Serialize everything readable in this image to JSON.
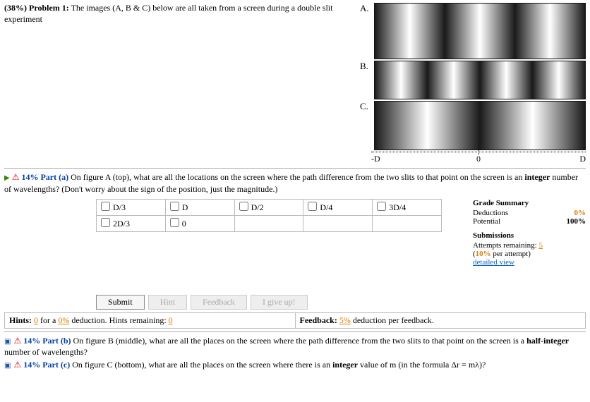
{
  "problem": {
    "weight": "(38%)",
    "title": "Problem 1:",
    "text": "The images (A, B & C) below are all taken from a screen during a double slit experiment"
  },
  "figure": {
    "labels": {
      "a": "A.",
      "b": "B.",
      "c": "C."
    },
    "axis": {
      "left": "-D",
      "center": "0",
      "right": "D"
    },
    "fringe_colors": {
      "light": "#ffffff",
      "dark": "#1a1a1a"
    },
    "patterns": {
      "a": {
        "count": 3
      },
      "b": {
        "count": 4
      },
      "c": {
        "count": 2
      }
    }
  },
  "part_a": {
    "icon1": "▶",
    "icon2": "⚠",
    "pct": "14%",
    "label": "Part (a)",
    "text1": "On figure A (top), what are all the locations on the screen where the path difference from the two slits to that point on the screen is an ",
    "bold": "integer",
    "text2": " number of wavelengths? (Don't worry about the sign of the position, just the magnitude.)",
    "options": [
      [
        "D/3",
        "D",
        "D/2",
        "D/4",
        "3D/4"
      ],
      [
        "2D/3",
        "0",
        "",
        "",
        ""
      ]
    ]
  },
  "grade": {
    "title": "Grade Summary",
    "ded_lbl": "Deductions",
    "ded_val": "0%",
    "pot_lbl": "Potential",
    "pot_val": "100%",
    "sub_title": "Submissions",
    "att_lbl": "Attempts remaining: ",
    "att_val": "5",
    "per_lbl": "(",
    "per_val": "10%",
    "per_lbl2": " per attempt)",
    "dv": "detailed view"
  },
  "buttons": {
    "submit": "Submit",
    "hint": "Hint",
    "feedback": "Feedback",
    "giveup": "I give up!"
  },
  "hints": {
    "prefix": "Hints: ",
    "val": "0",
    "mid": " for a ",
    "ded": "0%",
    "mid2": " deduction. Hints remaining: ",
    "rem": "0"
  },
  "feedback": {
    "prefix": "Feedback: ",
    "val": "5%",
    "suffix": " deduction per feedback."
  },
  "part_b": {
    "icon1": "▣",
    "icon2": "⚠",
    "pct": "14%",
    "label": "Part (b)",
    "text1": "On figure B (middle), what are all the places on the screen where the path difference from the two slits to that point on the screen is a ",
    "bold": "half-integer",
    "text2": " number of wavelengths?"
  },
  "part_c": {
    "icon1": "▣",
    "icon2": "⚠",
    "pct": "14%",
    "label": "Part (c)",
    "text1": "On figure C (bottom), what are all the places on the screen where there is an ",
    "bold": "integer",
    "text2": " value of m (in the formula Δr = mλ)?"
  }
}
